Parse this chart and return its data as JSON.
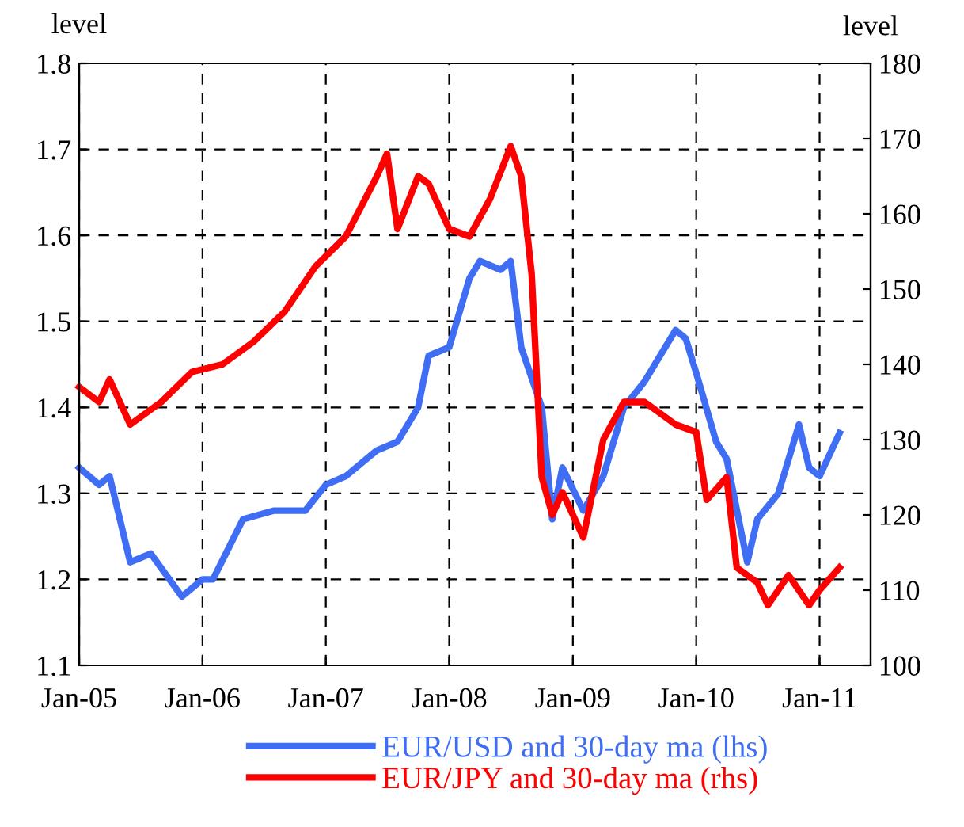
{
  "chart_data": {
    "type": "line",
    "ylabel": "level",
    "y2label": "level",
    "xlim": [
      "2005-01-01",
      "2011-06-01"
    ],
    "xticks": [
      {
        "value": "2005-01-01",
        "label": "Jan-05"
      },
      {
        "value": "2006-01-01",
        "label": "Jan-06"
      },
      {
        "value": "2007-01-01",
        "label": "Jan-07"
      },
      {
        "value": "2008-01-01",
        "label": "Jan-08"
      },
      {
        "value": "2009-01-01",
        "label": "Jan-09"
      },
      {
        "value": "2010-01-01",
        "label": "Jan-10"
      },
      {
        "value": "2011-01-01",
        "label": "Jan-11"
      }
    ],
    "ylim": [
      1.1,
      1.8
    ],
    "yticks": [
      1.1,
      1.2,
      1.3,
      1.4,
      1.5,
      1.6,
      1.7,
      1.8
    ],
    "y2lim": [
      100,
      180
    ],
    "y2ticks": [
      100,
      110,
      120,
      130,
      140,
      150,
      160,
      170,
      180
    ],
    "grid": true,
    "line_style": "solid",
    "legend": "bottom",
    "series": [
      {
        "name": "EUR/USD and 30-day ma (lhs)",
        "color": "#3f6ef5",
        "x": [
          "2005-01",
          "2005-03",
          "2005-04",
          "2005-06",
          "2005-08",
          "2005-11",
          "2006-01",
          "2006-02",
          "2006-05",
          "2006-08",
          "2006-11",
          "2007-01",
          "2007-03",
          "2007-06",
          "2007-08",
          "2007-10",
          "2007-11",
          "2008-01",
          "2008-03",
          "2008-04",
          "2008-06",
          "2008-07",
          "2008-08",
          "2008-10",
          "2008-11",
          "2008-12",
          "2009-02",
          "2009-04",
          "2009-06",
          "2009-08",
          "2009-11",
          "2009-12",
          "2010-01",
          "2010-03",
          "2010-04",
          "2010-06",
          "2010-07",
          "2010-09",
          "2010-11",
          "2010-12",
          "2011-01",
          "2011-03"
        ],
        "values": [
          1.33,
          1.31,
          1.32,
          1.22,
          1.23,
          1.18,
          1.2,
          1.2,
          1.27,
          1.28,
          1.28,
          1.31,
          1.32,
          1.35,
          1.36,
          1.4,
          1.46,
          1.47,
          1.55,
          1.57,
          1.56,
          1.57,
          1.47,
          1.4,
          1.27,
          1.33,
          1.28,
          1.32,
          1.4,
          1.43,
          1.49,
          1.48,
          1.44,
          1.36,
          1.34,
          1.22,
          1.27,
          1.3,
          1.38,
          1.33,
          1.32,
          1.37
        ]
      },
      {
        "name": "EUR/JPY and 30-day ma (rhs)",
        "color": "#ff0000",
        "axis": "y2",
        "x": [
          "2005-01",
          "2005-03",
          "2005-04",
          "2005-06",
          "2005-09",
          "2005-12",
          "2006-03",
          "2006-06",
          "2006-09",
          "2006-12",
          "2007-03",
          "2007-06",
          "2007-07",
          "2007-08",
          "2007-10",
          "2007-11",
          "2008-01",
          "2008-03",
          "2008-05",
          "2008-07",
          "2008-08",
          "2008-09",
          "2008-10",
          "2008-11",
          "2008-12",
          "2009-02",
          "2009-04",
          "2009-06",
          "2009-08",
          "2009-11",
          "2010-01",
          "2010-02",
          "2010-04",
          "2010-05",
          "2010-07",
          "2010-08",
          "2010-10",
          "2010-12",
          "2011-01",
          "2011-03"
        ],
        "values": [
          137,
          135,
          138,
          132,
          135,
          139,
          140,
          143,
          147,
          153,
          157,
          165,
          168,
          158,
          165,
          164,
          158,
          157,
          162,
          169,
          165,
          152,
          125,
          120,
          123,
          117,
          130,
          135,
          135,
          132,
          131,
          122,
          125,
          113,
          111,
          108,
          112,
          108,
          110,
          113
        ]
      }
    ]
  }
}
